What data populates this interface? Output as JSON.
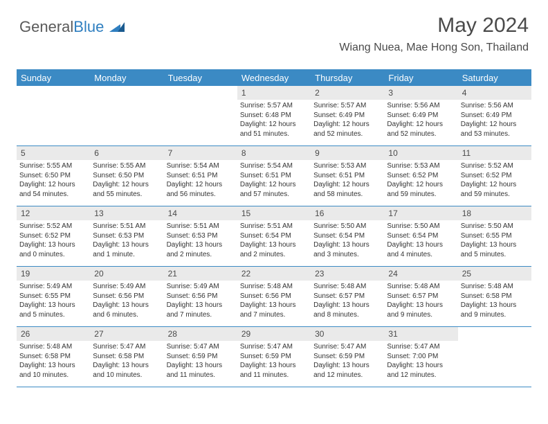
{
  "logo": {
    "part1": "General",
    "part2": "Blue"
  },
  "title": "May 2024",
  "location": "Wiang Nuea, Mae Hong Son, Thailand",
  "colors": {
    "header_bg": "#3b8ac4",
    "header_text": "#ffffff",
    "daynum_bg": "#eaeaea",
    "border": "#3b8ac4",
    "logo_gray": "#5a5a5a",
    "logo_blue": "#2f7fc0"
  },
  "day_headers": [
    "Sunday",
    "Monday",
    "Tuesday",
    "Wednesday",
    "Thursday",
    "Friday",
    "Saturday"
  ],
  "weeks": [
    [
      null,
      null,
      null,
      {
        "num": "1",
        "sunrise": "Sunrise: 5:57 AM",
        "sunset": "Sunset: 6:48 PM",
        "daylight1": "Daylight: 12 hours",
        "daylight2": "and 51 minutes."
      },
      {
        "num": "2",
        "sunrise": "Sunrise: 5:57 AM",
        "sunset": "Sunset: 6:49 PM",
        "daylight1": "Daylight: 12 hours",
        "daylight2": "and 52 minutes."
      },
      {
        "num": "3",
        "sunrise": "Sunrise: 5:56 AM",
        "sunset": "Sunset: 6:49 PM",
        "daylight1": "Daylight: 12 hours",
        "daylight2": "and 52 minutes."
      },
      {
        "num": "4",
        "sunrise": "Sunrise: 5:56 AM",
        "sunset": "Sunset: 6:49 PM",
        "daylight1": "Daylight: 12 hours",
        "daylight2": "and 53 minutes."
      }
    ],
    [
      {
        "num": "5",
        "sunrise": "Sunrise: 5:55 AM",
        "sunset": "Sunset: 6:50 PM",
        "daylight1": "Daylight: 12 hours",
        "daylight2": "and 54 minutes."
      },
      {
        "num": "6",
        "sunrise": "Sunrise: 5:55 AM",
        "sunset": "Sunset: 6:50 PM",
        "daylight1": "Daylight: 12 hours",
        "daylight2": "and 55 minutes."
      },
      {
        "num": "7",
        "sunrise": "Sunrise: 5:54 AM",
        "sunset": "Sunset: 6:51 PM",
        "daylight1": "Daylight: 12 hours",
        "daylight2": "and 56 minutes."
      },
      {
        "num": "8",
        "sunrise": "Sunrise: 5:54 AM",
        "sunset": "Sunset: 6:51 PM",
        "daylight1": "Daylight: 12 hours",
        "daylight2": "and 57 minutes."
      },
      {
        "num": "9",
        "sunrise": "Sunrise: 5:53 AM",
        "sunset": "Sunset: 6:51 PM",
        "daylight1": "Daylight: 12 hours",
        "daylight2": "and 58 minutes."
      },
      {
        "num": "10",
        "sunrise": "Sunrise: 5:53 AM",
        "sunset": "Sunset: 6:52 PM",
        "daylight1": "Daylight: 12 hours",
        "daylight2": "and 59 minutes."
      },
      {
        "num": "11",
        "sunrise": "Sunrise: 5:52 AM",
        "sunset": "Sunset: 6:52 PM",
        "daylight1": "Daylight: 12 hours",
        "daylight2": "and 59 minutes."
      }
    ],
    [
      {
        "num": "12",
        "sunrise": "Sunrise: 5:52 AM",
        "sunset": "Sunset: 6:52 PM",
        "daylight1": "Daylight: 13 hours",
        "daylight2": "and 0 minutes."
      },
      {
        "num": "13",
        "sunrise": "Sunrise: 5:51 AM",
        "sunset": "Sunset: 6:53 PM",
        "daylight1": "Daylight: 13 hours",
        "daylight2": "and 1 minute."
      },
      {
        "num": "14",
        "sunrise": "Sunrise: 5:51 AM",
        "sunset": "Sunset: 6:53 PM",
        "daylight1": "Daylight: 13 hours",
        "daylight2": "and 2 minutes."
      },
      {
        "num": "15",
        "sunrise": "Sunrise: 5:51 AM",
        "sunset": "Sunset: 6:54 PM",
        "daylight1": "Daylight: 13 hours",
        "daylight2": "and 2 minutes."
      },
      {
        "num": "16",
        "sunrise": "Sunrise: 5:50 AM",
        "sunset": "Sunset: 6:54 PM",
        "daylight1": "Daylight: 13 hours",
        "daylight2": "and 3 minutes."
      },
      {
        "num": "17",
        "sunrise": "Sunrise: 5:50 AM",
        "sunset": "Sunset: 6:54 PM",
        "daylight1": "Daylight: 13 hours",
        "daylight2": "and 4 minutes."
      },
      {
        "num": "18",
        "sunrise": "Sunrise: 5:50 AM",
        "sunset": "Sunset: 6:55 PM",
        "daylight1": "Daylight: 13 hours",
        "daylight2": "and 5 minutes."
      }
    ],
    [
      {
        "num": "19",
        "sunrise": "Sunrise: 5:49 AM",
        "sunset": "Sunset: 6:55 PM",
        "daylight1": "Daylight: 13 hours",
        "daylight2": "and 5 minutes."
      },
      {
        "num": "20",
        "sunrise": "Sunrise: 5:49 AM",
        "sunset": "Sunset: 6:56 PM",
        "daylight1": "Daylight: 13 hours",
        "daylight2": "and 6 minutes."
      },
      {
        "num": "21",
        "sunrise": "Sunrise: 5:49 AM",
        "sunset": "Sunset: 6:56 PM",
        "daylight1": "Daylight: 13 hours",
        "daylight2": "and 7 minutes."
      },
      {
        "num": "22",
        "sunrise": "Sunrise: 5:48 AM",
        "sunset": "Sunset: 6:56 PM",
        "daylight1": "Daylight: 13 hours",
        "daylight2": "and 7 minutes."
      },
      {
        "num": "23",
        "sunrise": "Sunrise: 5:48 AM",
        "sunset": "Sunset: 6:57 PM",
        "daylight1": "Daylight: 13 hours",
        "daylight2": "and 8 minutes."
      },
      {
        "num": "24",
        "sunrise": "Sunrise: 5:48 AM",
        "sunset": "Sunset: 6:57 PM",
        "daylight1": "Daylight: 13 hours",
        "daylight2": "and 9 minutes."
      },
      {
        "num": "25",
        "sunrise": "Sunrise: 5:48 AM",
        "sunset": "Sunset: 6:58 PM",
        "daylight1": "Daylight: 13 hours",
        "daylight2": "and 9 minutes."
      }
    ],
    [
      {
        "num": "26",
        "sunrise": "Sunrise: 5:48 AM",
        "sunset": "Sunset: 6:58 PM",
        "daylight1": "Daylight: 13 hours",
        "daylight2": "and 10 minutes."
      },
      {
        "num": "27",
        "sunrise": "Sunrise: 5:47 AM",
        "sunset": "Sunset: 6:58 PM",
        "daylight1": "Daylight: 13 hours",
        "daylight2": "and 10 minutes."
      },
      {
        "num": "28",
        "sunrise": "Sunrise: 5:47 AM",
        "sunset": "Sunset: 6:59 PM",
        "daylight1": "Daylight: 13 hours",
        "daylight2": "and 11 minutes."
      },
      {
        "num": "29",
        "sunrise": "Sunrise: 5:47 AM",
        "sunset": "Sunset: 6:59 PM",
        "daylight1": "Daylight: 13 hours",
        "daylight2": "and 11 minutes."
      },
      {
        "num": "30",
        "sunrise": "Sunrise: 5:47 AM",
        "sunset": "Sunset: 6:59 PM",
        "daylight1": "Daylight: 13 hours",
        "daylight2": "and 12 minutes."
      },
      {
        "num": "31",
        "sunrise": "Sunrise: 5:47 AM",
        "sunset": "Sunset: 7:00 PM",
        "daylight1": "Daylight: 13 hours",
        "daylight2": "and 12 minutes."
      },
      null
    ]
  ]
}
